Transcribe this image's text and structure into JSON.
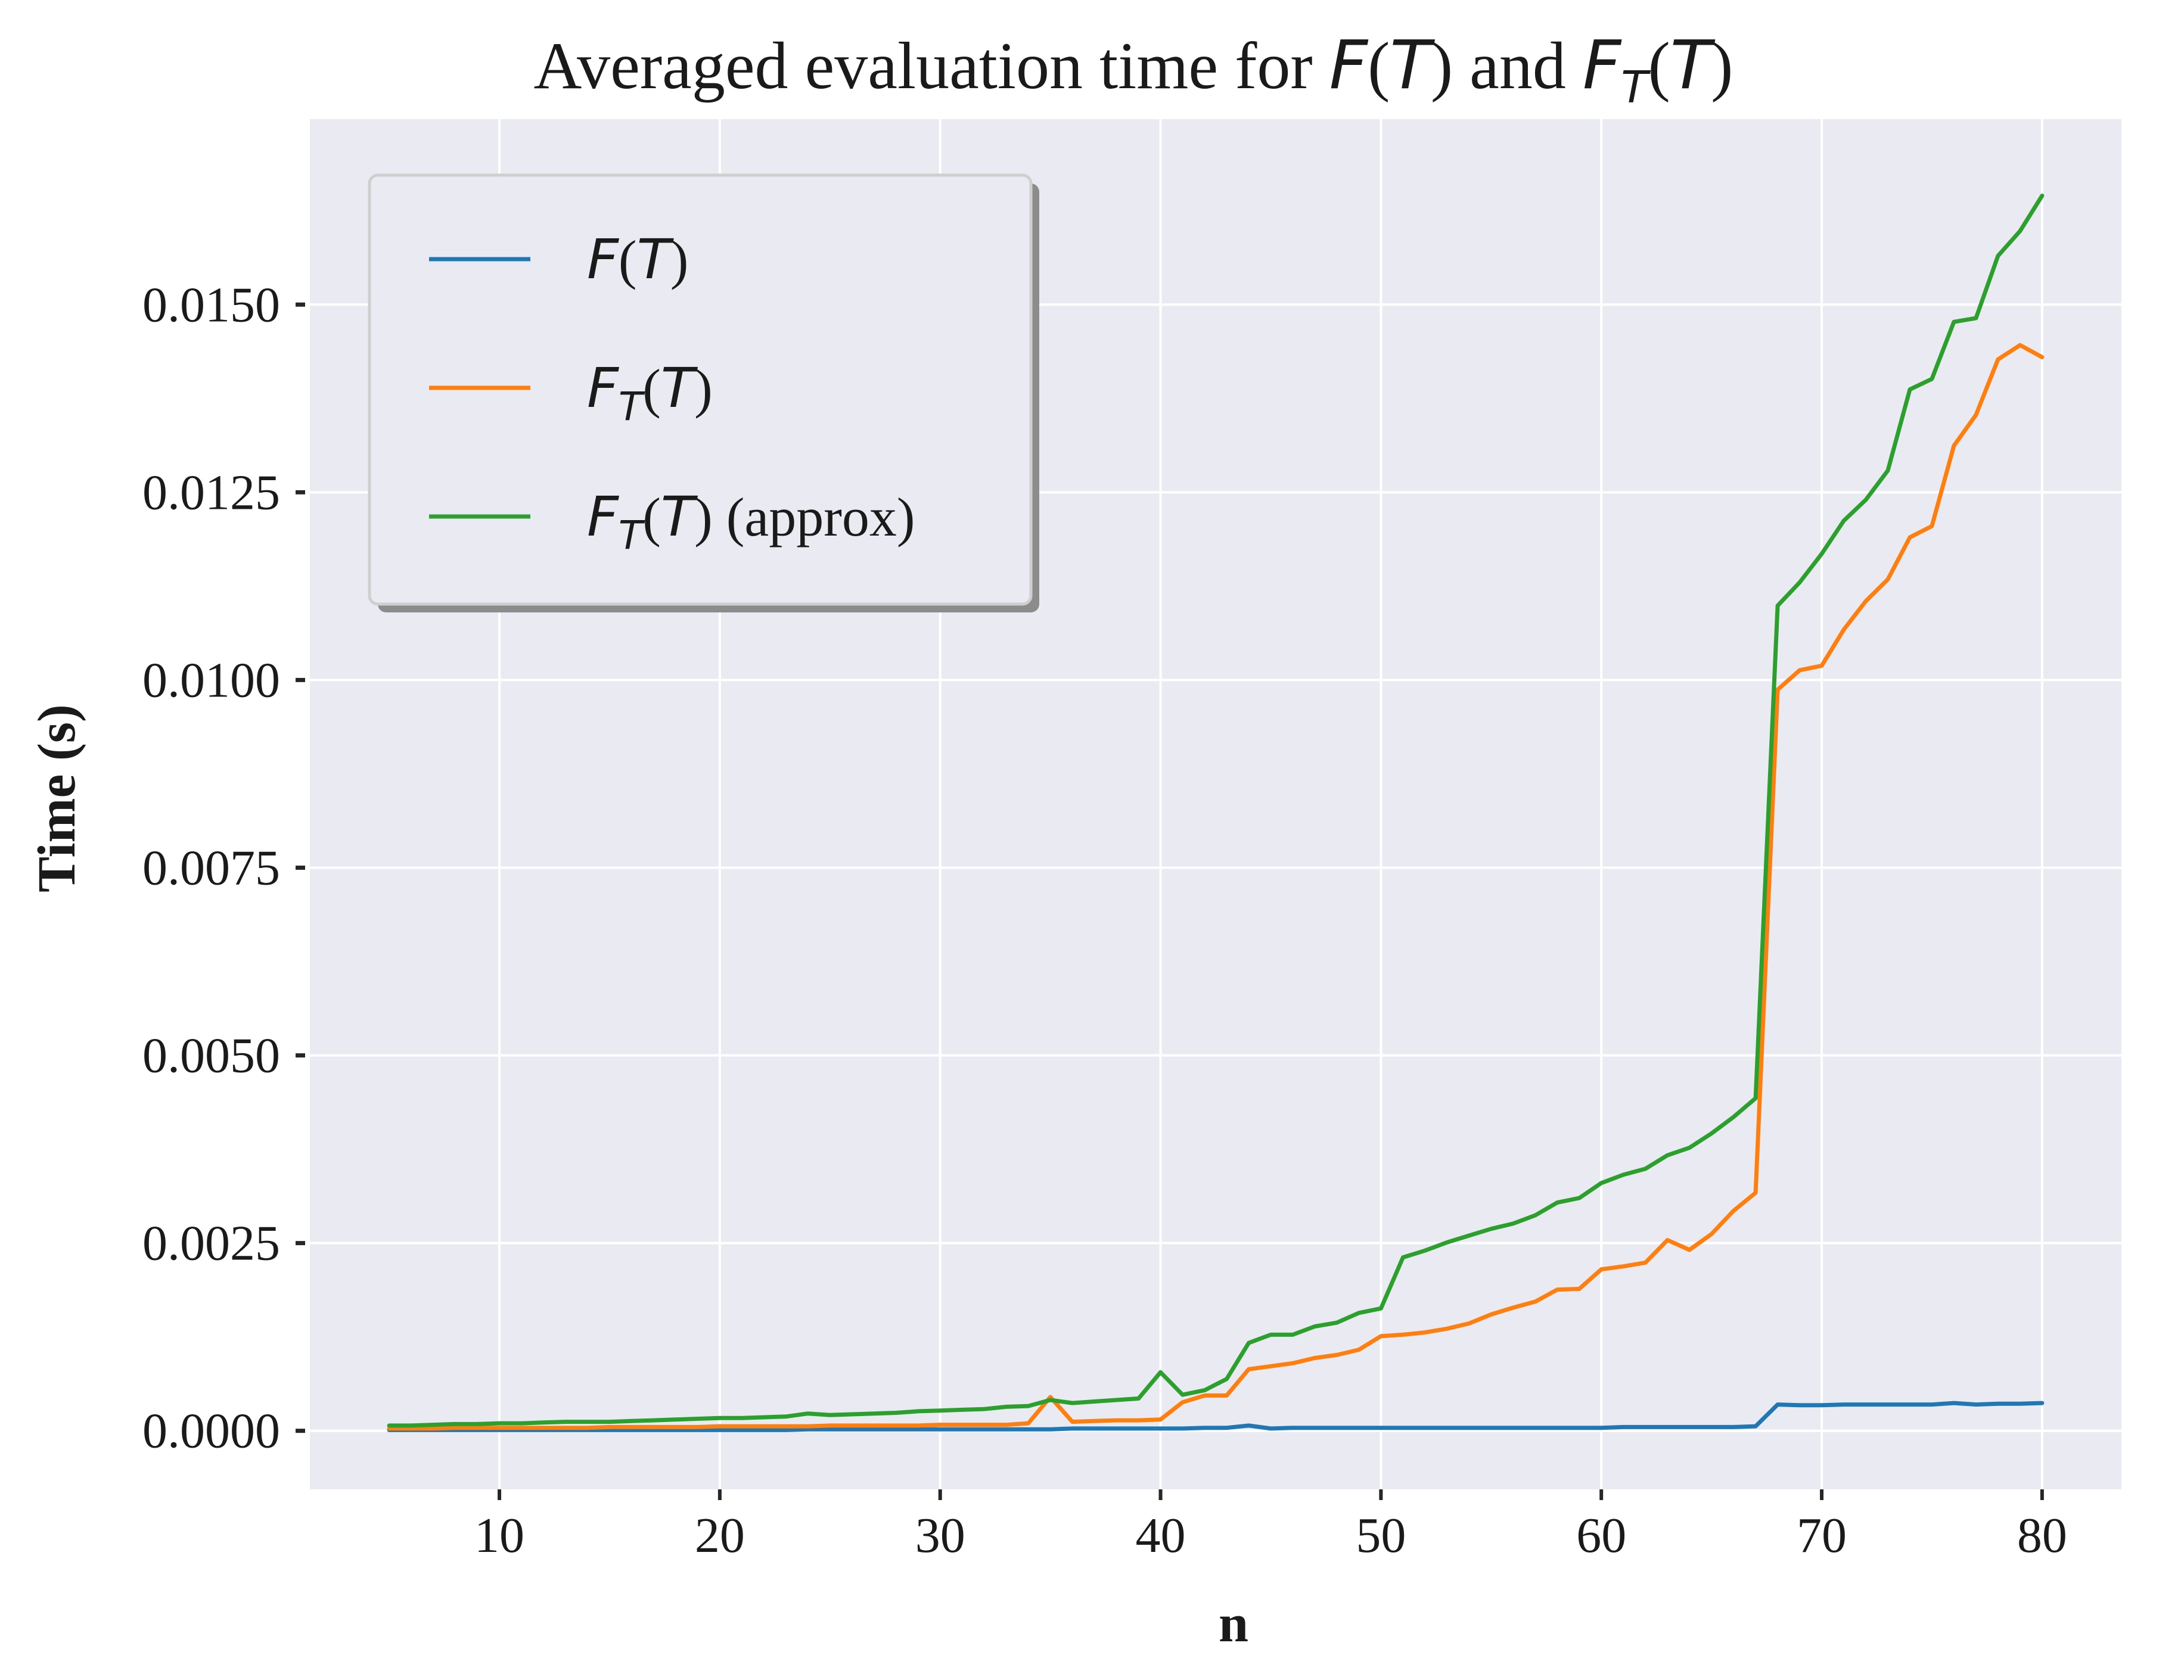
{
  "chart_data": {
    "type": "line",
    "title": {
      "prefix": "Averaged evaluation time for ",
      "f1_main": "F",
      "f1_open": "(",
      "f1_arg": "T",
      "f1_close": ")",
      "mid": " and ",
      "f2_main": "F",
      "f2_sub": "T",
      "f2_open": "(",
      "f2_arg": "T",
      "f2_close": ")"
    },
    "xlabel": "n",
    "ylabel": "Time (s)",
    "xlim": [
      1.4,
      83.6
    ],
    "ylim": [
      -0.00078,
      0.01747
    ],
    "xticks": [
      10,
      20,
      30,
      40,
      50,
      60,
      70,
      80
    ],
    "xtick_labels": [
      "10",
      "20",
      "30",
      "40",
      "50",
      "60",
      "70",
      "80"
    ],
    "yticks": [
      0.0,
      0.0025,
      0.005,
      0.0075,
      0.01,
      0.0125,
      0.015
    ],
    "ytick_labels": [
      "0.0000",
      "0.0025",
      "0.0050",
      "0.0075",
      "0.0100",
      "0.0125",
      "0.0150"
    ],
    "grid": true,
    "legend_position": "upper-left",
    "x": [
      5,
      6,
      7,
      8,
      9,
      10,
      11,
      12,
      13,
      14,
      15,
      16,
      17,
      18,
      19,
      20,
      21,
      22,
      23,
      24,
      25,
      26,
      27,
      28,
      29,
      30,
      31,
      32,
      33,
      34,
      35,
      36,
      37,
      38,
      39,
      40,
      41,
      42,
      43,
      44,
      45,
      46,
      47,
      48,
      49,
      50,
      51,
      52,
      53,
      54,
      55,
      56,
      57,
      58,
      59,
      60,
      61,
      62,
      63,
      64,
      65,
      66,
      67,
      68,
      69,
      70,
      71,
      72,
      73,
      74,
      75,
      76,
      77,
      78,
      79,
      80
    ],
    "series": [
      {
        "name": "F(T)",
        "legend": {
          "main": "F",
          "sub": "",
          "open": "(",
          "arg": "T",
          "close": ")",
          "suffix": ""
        },
        "color": "#1f77b4",
        "values": [
          1e-05,
          1e-05,
          1e-05,
          1e-05,
          1e-05,
          1e-05,
          1e-05,
          1e-05,
          1e-05,
          1e-05,
          1e-05,
          1e-05,
          1e-05,
          1e-05,
          1e-05,
          1e-05,
          1e-05,
          1e-05,
          1e-05,
          2e-05,
          2e-05,
          2e-05,
          2e-05,
          2e-05,
          2e-05,
          2e-05,
          2e-05,
          2e-05,
          2e-05,
          2e-05,
          2e-05,
          3e-05,
          3e-05,
          3e-05,
          3e-05,
          3e-05,
          3e-05,
          4e-05,
          4e-05,
          7e-05,
          3e-05,
          4e-05,
          4e-05,
          4e-05,
          4e-05,
          4e-05,
          4e-05,
          4e-05,
          4e-05,
          4e-05,
          4e-05,
          4e-05,
          4e-05,
          4e-05,
          4e-05,
          4e-05,
          5e-05,
          5e-05,
          5e-05,
          5e-05,
          5e-05,
          5e-05,
          6e-05,
          0.00035,
          0.00034,
          0.00034,
          0.00035,
          0.00035,
          0.00035,
          0.00035,
          0.00035,
          0.00037,
          0.00035,
          0.00036,
          0.00036,
          0.00037
        ]
      },
      {
        "name": "F_T(T)",
        "legend": {
          "main": "F",
          "sub": "T",
          "open": "(",
          "arg": "T",
          "close": ")",
          "suffix": ""
        },
        "color": "#ff7f0e",
        "values": [
          3e-05,
          3e-05,
          3e-05,
          4e-05,
          4e-05,
          4e-05,
          4e-05,
          4e-05,
          4e-05,
          4e-05,
          5e-05,
          5e-05,
          5e-05,
          5e-05,
          5e-05,
          6e-05,
          6e-05,
          6e-05,
          6e-05,
          6e-05,
          7e-05,
          7e-05,
          7e-05,
          7e-05,
          7e-05,
          8e-05,
          8e-05,
          8e-05,
          8e-05,
          0.0001,
          0.00045,
          0.00012,
          0.00013,
          0.00014,
          0.00014,
          0.00015,
          0.00038,
          0.00047,
          0.00047,
          0.00082,
          0.00086,
          0.0009,
          0.00097,
          0.00101,
          0.00108,
          0.00126,
          0.00128,
          0.00131,
          0.00136,
          0.00143,
          0.00155,
          0.00164,
          0.00172,
          0.00188,
          0.00189,
          0.00215,
          0.00219,
          0.00224,
          0.00254,
          0.00241,
          0.00262,
          0.00293,
          0.00317,
          0.00987,
          0.01013,
          0.01019,
          0.01067,
          0.01105,
          0.01134,
          0.0119,
          0.01205,
          0.01312,
          0.01353,
          0.01427,
          0.01446,
          0.0143
        ]
      },
      {
        "name": "F_T(T) (approx)",
        "legend": {
          "main": "F",
          "sub": "T",
          "open": "(",
          "arg": "T",
          "close": ")",
          "suffix": " (approx)"
        },
        "color": "#2ca02c",
        "values": [
          7e-05,
          7e-05,
          8e-05,
          9e-05,
          9e-05,
          0.0001,
          0.0001,
          0.00011,
          0.00012,
          0.00012,
          0.00012,
          0.00013,
          0.00014,
          0.00015,
          0.00016,
          0.00017,
          0.00017,
          0.00018,
          0.00019,
          0.00023,
          0.00021,
          0.00022,
          0.00023,
          0.00024,
          0.00026,
          0.00027,
          0.00028,
          0.00029,
          0.00032,
          0.00033,
          0.00041,
          0.00037,
          0.00039,
          0.00041,
          0.00043,
          0.00078,
          0.00048,
          0.00054,
          0.00069,
          0.00117,
          0.00128,
          0.00128,
          0.00139,
          0.00144,
          0.00157,
          0.00163,
          0.00231,
          0.0024,
          0.00251,
          0.0026,
          0.00269,
          0.00276,
          0.00287,
          0.00304,
          0.0031,
          0.0033,
          0.00341,
          0.00349,
          0.00367,
          0.00377,
          0.00396,
          0.00418,
          0.00443,
          0.01099,
          0.0113,
          0.01168,
          0.01212,
          0.0124,
          0.01279,
          0.01387,
          0.01401,
          0.01477,
          0.01482,
          0.01565,
          0.01598,
          0.01645
        ]
      }
    ]
  }
}
